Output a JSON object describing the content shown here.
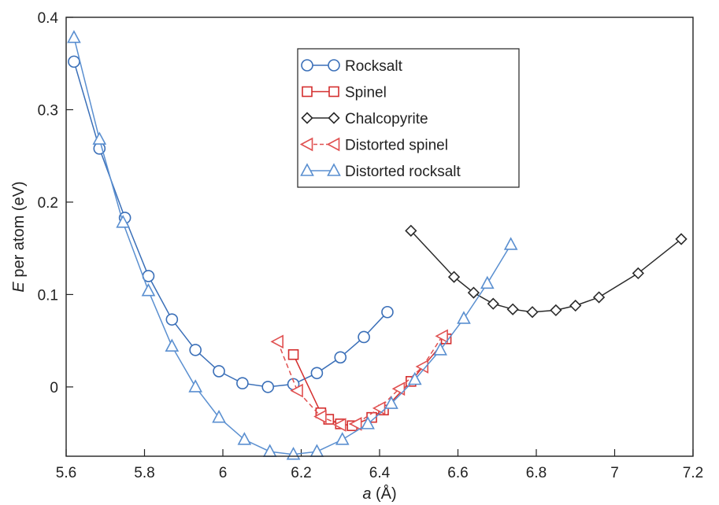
{
  "chart_data": {
    "type": "line",
    "title": "",
    "xlabel_italic": "a",
    "xlabel_rest": " (Å)",
    "ylabel_italic": "E",
    "ylabel_rest": " per atom (eV)",
    "xlim": [
      5.6,
      7.2
    ],
    "ylim": [
      -0.075,
      0.4
    ],
    "xticks": [
      5.6,
      5.8,
      6.0,
      6.2,
      6.4,
      6.6,
      6.8,
      7.0,
      7.2
    ],
    "xtick_labels": [
      "5.6",
      "5.8",
      "6",
      "6.2",
      "6.4",
      "6.6",
      "6.8",
      "7",
      "7.2"
    ],
    "yticks": [
      0,
      0.1,
      0.2,
      0.3,
      0.4
    ],
    "ytick_labels": [
      "0",
      "0.1",
      "0.2",
      "0.3",
      "0.4"
    ],
    "grid": false,
    "legend_position": "top-center",
    "series": [
      {
        "name": "Rocksalt",
        "marker": "circle",
        "color": "#3a6fb8",
        "dashed": false,
        "x": [
          5.62,
          5.685,
          5.75,
          5.81,
          5.87,
          5.93,
          5.99,
          6.05,
          6.115,
          6.18,
          6.24,
          6.3,
          6.36,
          6.42
        ],
        "y": [
          0.352,
          0.258,
          0.183,
          0.12,
          0.073,
          0.04,
          0.017,
          0.004,
          0.0,
          0.003,
          0.015,
          0.032,
          0.054,
          0.081
        ]
      },
      {
        "name": "Spinel",
        "marker": "square",
        "color": "#d42e2e",
        "dashed": false,
        "x": [
          6.18,
          6.25,
          6.27,
          6.3,
          6.33,
          6.38,
          6.41,
          6.48,
          6.57
        ],
        "y": [
          0.035,
          -0.028,
          -0.035,
          -0.04,
          -0.042,
          -0.033,
          -0.025,
          0.006,
          0.052
        ]
      },
      {
        "name": "Chalcopyrite",
        "marker": "diamond",
        "color": "#2a2a2a",
        "dashed": false,
        "x": [
          6.48,
          6.59,
          6.64,
          6.69,
          6.74,
          6.79,
          6.85,
          6.9,
          6.96,
          7.06,
          7.17
        ],
        "y": [
          0.169,
          0.119,
          0.102,
          0.09,
          0.084,
          0.081,
          0.083,
          0.088,
          0.097,
          0.123,
          0.16
        ]
      },
      {
        "name": "Distorted spinel",
        "marker": "triangle-left",
        "color": "#e05050",
        "dashed": true,
        "x": [
          6.14,
          6.19,
          6.25,
          6.3,
          6.34,
          6.4,
          6.45,
          6.51,
          6.56
        ],
        "y": [
          0.049,
          -0.004,
          -0.032,
          -0.041,
          -0.04,
          -0.023,
          -0.002,
          0.022,
          0.055
        ]
      },
      {
        "name": "Distorted rocksalt",
        "marker": "triangle-up",
        "color": "#5a8fd0",
        "dashed": false,
        "x": [
          5.62,
          5.685,
          5.745,
          5.81,
          5.87,
          5.93,
          5.99,
          6.055,
          6.12,
          6.18,
          6.24,
          6.305,
          6.37,
          6.43,
          6.49,
          6.555,
          6.615,
          6.675,
          6.735
        ],
        "y": [
          0.378,
          0.268,
          0.178,
          0.104,
          0.044,
          0.0,
          -0.033,
          -0.057,
          -0.07,
          -0.073,
          -0.07,
          -0.057,
          -0.04,
          -0.018,
          0.008,
          0.04,
          0.074,
          0.112,
          0.154
        ]
      }
    ]
  }
}
